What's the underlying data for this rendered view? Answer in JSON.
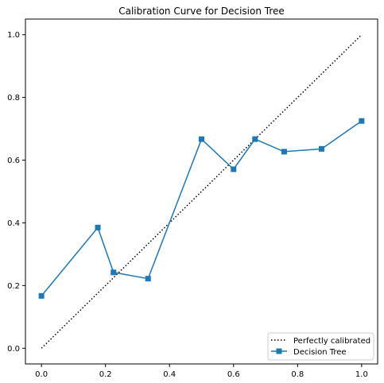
{
  "chart_data": {
    "type": "line",
    "title": "Calibration Curve for Decision Tree",
    "xlabel": "",
    "ylabel": "",
    "xlim": [
      -0.05,
      1.05
    ],
    "ylim": [
      -0.05,
      1.05
    ],
    "x_ticks": [
      "0.0",
      "0.2",
      "0.4",
      "0.6",
      "0.8",
      "1.0"
    ],
    "y_ticks": [
      "0.0",
      "0.2",
      "0.4",
      "0.6",
      "0.8",
      "1.0"
    ],
    "grid": false,
    "legend_position": "lower-right",
    "series": [
      {
        "name": "Perfectly calibrated",
        "style": "dotted",
        "color": "#000000",
        "marker": "none",
        "x": [
          0.0,
          1.0
        ],
        "y": [
          0.0,
          1.0
        ]
      },
      {
        "name": "Decision Tree",
        "style": "solid",
        "color": "#1f77b4",
        "marker": "square",
        "x": [
          0.0,
          0.176,
          0.225,
          0.333,
          0.5,
          0.6,
          0.667,
          0.758,
          0.875,
          1.0
        ],
        "y": [
          0.167,
          0.385,
          0.242,
          0.222,
          0.667,
          0.571,
          0.667,
          0.627,
          0.636,
          0.725
        ]
      }
    ]
  }
}
